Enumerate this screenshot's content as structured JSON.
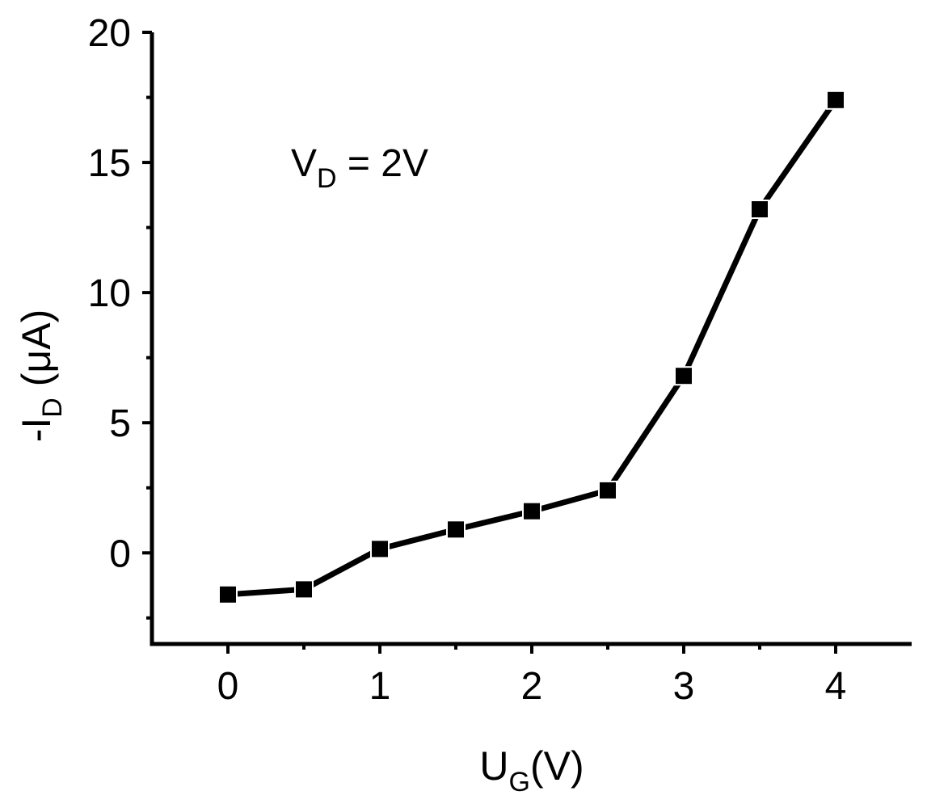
{
  "chart_data": {
    "type": "line",
    "title": "",
    "xlabel": {
      "main": "U",
      "sub": "G",
      "suffix": "(V)"
    },
    "ylabel": {
      "prefix": "-I",
      "sub": "D",
      "suffix": " (μA)"
    },
    "annotation": {
      "main": "V",
      "sub": "D",
      "suffix": " = 2V"
    },
    "xlim": [
      -0.5,
      4.5
    ],
    "ylim": [
      -3.5,
      20
    ],
    "xticks": [
      0,
      1,
      2,
      3,
      4
    ],
    "yticks": [
      0,
      5,
      10,
      15,
      20
    ],
    "x_minor_ticks": [
      0.5,
      1.5,
      2.5,
      3.5
    ],
    "y_minor_ticks": [
      -2.5,
      2.5,
      7.5,
      12.5,
      17.5
    ],
    "marker": "square",
    "color": "#000000",
    "grid": false,
    "legend": "none",
    "series": [
      {
        "x": [
          0,
          0.5,
          1,
          1.5,
          2,
          2.5,
          3,
          3.5,
          4
        ],
        "y": [
          -1.6,
          -1.4,
          0.15,
          0.9,
          1.6,
          2.4,
          6.8,
          13.2,
          17.4
        ]
      }
    ]
  }
}
